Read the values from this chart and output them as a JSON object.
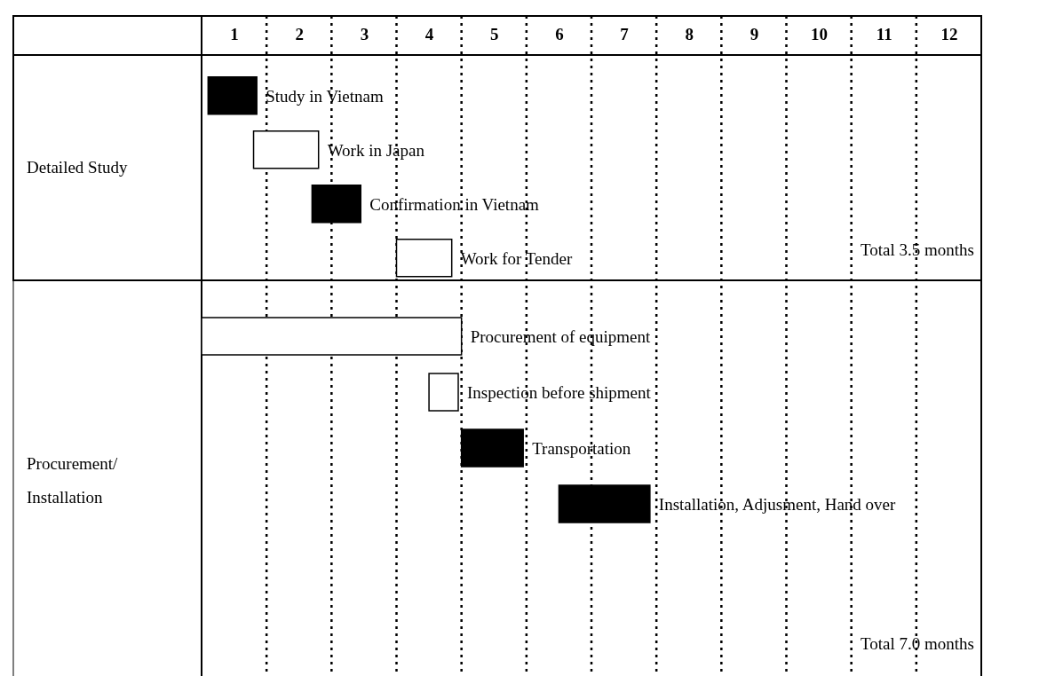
{
  "chart_data": {
    "type": "bar",
    "orientation": "horizontal",
    "categories": [
      "Study in Vietnam",
      "Work in Japan",
      "Confirmation in Vietnam",
      "Work for Tender",
      "Procurement of equipment",
      "Inspection before shipment",
      "Transportation",
      "Installation, Adjusment, Hand over"
    ],
    "base": [
      0.1,
      0.8,
      1.7,
      3.0,
      0,
      3.5,
      4.0,
      5.5
    ],
    "values": [
      0.75,
      1.0,
      0.75,
      0.85,
      4.0,
      0.45,
      0.95,
      1.4
    ],
    "colors": [
      "#000000",
      "#ffffff",
      "#000000",
      "#ffffff",
      "#ffffff",
      "#ffffff",
      "#000000",
      "#000000"
    ],
    "xlim": [
      0,
      12
    ],
    "xticks": [
      {
        "value": 0,
        "label": null
      },
      {
        "value": 0.5,
        "label": "1"
      },
      {
        "value": 1,
        "label": null
      },
      {
        "value": 1.5,
        "label": "2"
      },
      {
        "value": 2,
        "label": null
      },
      {
        "value": 2.5,
        "label": "3"
      },
      {
        "value": 3,
        "label": null
      },
      {
        "value": 3.5,
        "label": "4"
      },
      {
        "value": 4,
        "label": null
      },
      {
        "value": 4.5,
        "label": "5"
      },
      {
        "value": 5,
        "label": null
      },
      {
        "value": 5.5,
        "label": "6"
      },
      {
        "value": 6,
        "label": null
      },
      {
        "value": 6.5,
        "label": "7"
      },
      {
        "value": 7,
        "label": null
      },
      {
        "value": 7.5,
        "label": "8"
      },
      {
        "value": 8,
        "label": null
      },
      {
        "value": 8.5,
        "label": "9"
      },
      {
        "value": 9,
        "label": null
      },
      {
        "value": 9.5,
        "label": "10"
      },
      {
        "value": 10,
        "label": null
      },
      {
        "value": 10.5,
        "label": "11"
      },
      {
        "value": 11,
        "label": null
      },
      {
        "value": 11.5,
        "label": "12"
      },
      {
        "value": 12,
        "label": null
      }
    ],
    "grid": "x",
    "tick_labels": "x",
    "annotations": [
      "Detailed Study",
      "Procurement/ Installation",
      "Total 3.5 months",
      "Total 7.0 months"
    ]
  }
}
